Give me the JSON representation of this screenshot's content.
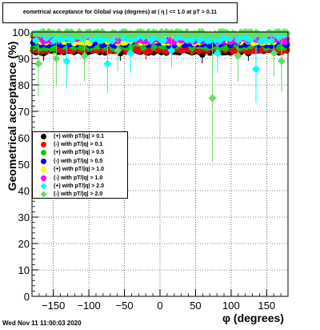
{
  "header": {
    "title": "eometrical acceptance for Global vsφ (degrees) at | η | <= 1.0 at pT > 0.11",
    "timestamp": "Wed Nov 11 11:00:03 2020"
  },
  "chart_data": {
    "type": "scatter",
    "title": "eometrical acceptance for Global vsφ (degrees) at | η | <= 1.0 at pT > 0.11",
    "xlabel": "φ (degrees)",
    "ylabel": "Geometrical acceptance (%)",
    "xlim": [
      -180,
      180
    ],
    "ylim": [
      0,
      100
    ],
    "xticks": [
      -150,
      -100,
      -50,
      0,
      50,
      100,
      150
    ],
    "yticks": [
      0,
      10,
      20,
      30,
      40,
      50,
      60,
      70,
      80,
      90,
      100
    ],
    "grid": true,
    "legend_position": "center-left",
    "series": [
      {
        "name": "(+) with pT/|q| > 0.1",
        "color": "#000000",
        "marker": "circle",
        "base": 93,
        "spread": 0.8,
        "outliers": [
          [
            -165,
            92
          ],
          [
            -55,
            92
          ],
          [
            60,
            91.5
          ],
          [
            125,
            92
          ]
        ]
      },
      {
        "name": "(-) with pT/|q| > 0.1",
        "color": "#ff0000",
        "marker": "circle",
        "base": 93.5,
        "spread": 0.8,
        "outliers": [
          [
            -20,
            92.5
          ],
          [
            170,
            92.5
          ]
        ]
      },
      {
        "name": "(+) with pT/|q| > 0.5",
        "color": "#00cc00",
        "marker": "circle",
        "base": 95,
        "spread": 1.2,
        "outliers": [
          [
            -150,
            94
          ],
          [
            45,
            94
          ]
        ]
      },
      {
        "name": "(-) with pT/|q| > 0.5",
        "color": "#0000ff",
        "marker": "circle",
        "base": 96,
        "spread": 1.2,
        "outliers": [
          [
            -100,
            95
          ],
          [
            140,
            95
          ]
        ]
      },
      {
        "name": "(+) with pT/|q| > 1.0",
        "color": "#ffff00",
        "marker": "circle",
        "base": 97,
        "spread": 1.2,
        "outliers": []
      },
      {
        "name": "(-) with pT/|q| > 1.0",
        "color": "#ff00ff",
        "marker": "circle",
        "base": 97.5,
        "spread": 1.2,
        "outliers": []
      },
      {
        "name": "(+) with pT/|q| > 2.0",
        "color": "#00ffff",
        "marker": "diamond",
        "base": 98,
        "spread": 1.5,
        "outliers": [
          [
            -130,
            89
          ],
          [
            -75,
            88
          ],
          [
            -40,
            92
          ],
          [
            15,
            93
          ],
          [
            82,
            92
          ],
          [
            135,
            86
          ]
        ]
      },
      {
        "name": "(-) with pT/|q| > 2.0",
        "color": "#66dd66",
        "marker": "diamond",
        "base": 99.5,
        "spread": 0.8,
        "outliers": [
          [
            -172,
            88
          ],
          [
            -145,
            90
          ],
          [
            -105,
            91
          ],
          [
            -60,
            93
          ],
          [
            75,
            75
          ],
          [
            110,
            91
          ],
          [
            160,
            92
          ],
          [
            172,
            89
          ]
        ]
      }
    ]
  }
}
